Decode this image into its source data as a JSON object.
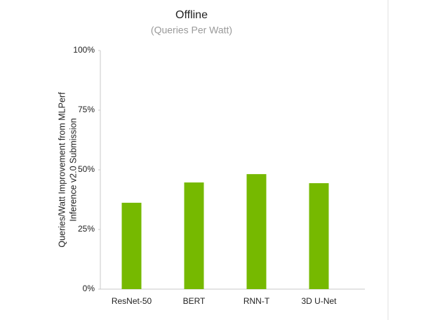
{
  "chart_data": {
    "type": "bar",
    "title": "Offline",
    "subtitle": "(Queries Per Watt)",
    "ylabel": [
      "Queries/Watt Improvement from MLPerf",
      "Inference v2.0 Submission"
    ],
    "categories": [
      "ResNet-50",
      "BERT",
      "RNN-T",
      "3D U-Net"
    ],
    "values": [
      36.2,
      44.7,
      48.2,
      44.4
    ],
    "color": "#76b900",
    "ylim": [
      0,
      100
    ],
    "yticks": [
      {
        "value": 0,
        "label": "0%"
      },
      {
        "value": 25,
        "label": "25%"
      },
      {
        "value": 50,
        "label": "50%"
      },
      {
        "value": 75,
        "label": "75%"
      },
      {
        "value": 100,
        "label": "100%"
      }
    ],
    "grid": false
  }
}
